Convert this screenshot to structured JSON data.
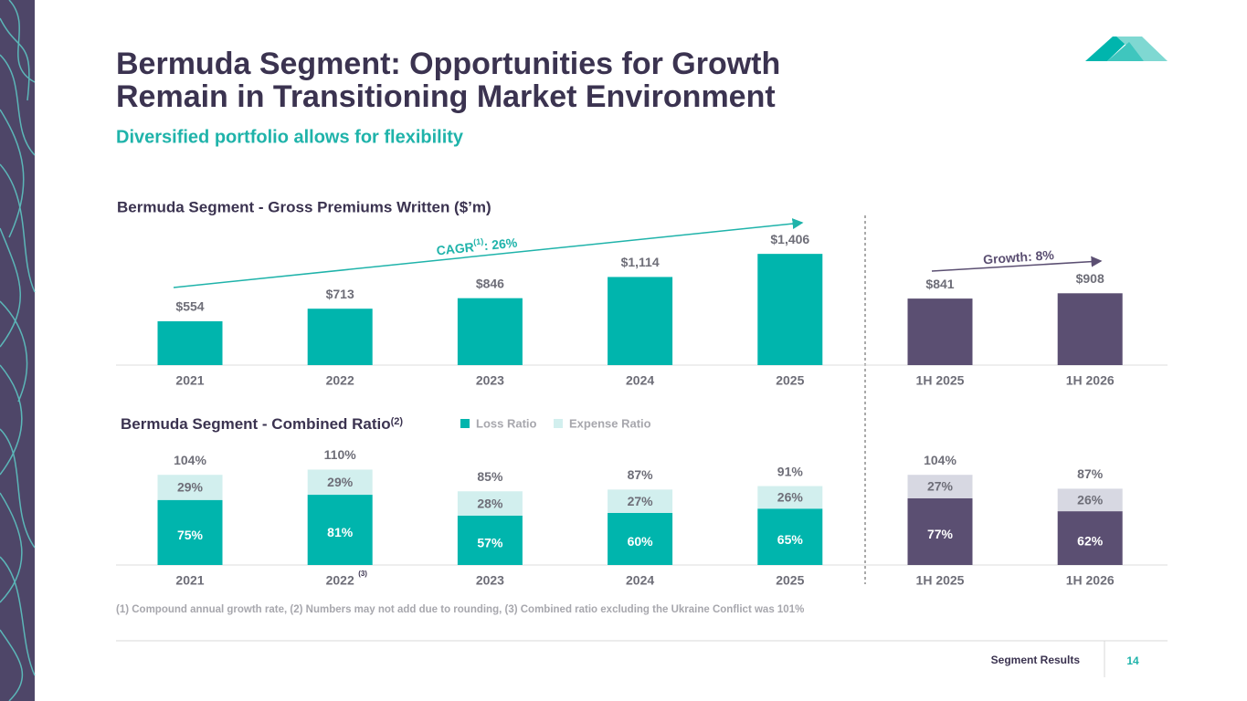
{
  "slide": {
    "title_lines": [
      "Bermuda Segment: Opportunities for Growth",
      "Remain in Transitioning Market Environment"
    ],
    "subtitle": "Diversified portfolio allows for flexibility",
    "footnote": "(1) Compound annual growth rate, (2) Numbers may not add due to rounding, (3) Combined ratio excluding the Ukraine Conflict was 101%",
    "section": "Segment Results",
    "page_number": "14"
  },
  "chart_data": [
    {
      "type": "bar",
      "title": "Bermuda Segment - Gross Premiums Written ($’m)",
      "categories": [
        "2021",
        "2022",
        "2023",
        "2024",
        "2025",
        "1H 2025",
        "1H 2026"
      ],
      "values": [
        554,
        713,
        846,
        1114,
        1406,
        841,
        908
      ],
      "value_labels": [
        "$554",
        "$713",
        "$846",
        "$1,114",
        "$1,406",
        "$841",
        "$908"
      ],
      "colors": [
        "#00b5ad",
        "#00b5ad",
        "#00b5ad",
        "#00b5ad",
        "#00b5ad",
        "#5b4f72",
        "#5b4f72"
      ],
      "ylim": [
        0,
        1500
      ],
      "cagr": {
        "text": "CAGR",
        "superscript": "(1)",
        "suffix": ": 26%"
      },
      "growth": "Growth: 8%"
    },
    {
      "type": "stacked_bar",
      "title": "Bermuda Segment - Combined Ratio",
      "title_superscript": "(2)",
      "categories": [
        "2021",
        "2022",
        "2023",
        "2024",
        "2025",
        "1H 2025",
        "1H 2026"
      ],
      "category_superscripts": [
        null,
        "(3)",
        null,
        null,
        null,
        null,
        null
      ],
      "series": [
        {
          "name": "Loss  Ratio",
          "color": "#00b5ad",
          "values": [
            75,
            81,
            57,
            60,
            65,
            77,
            62
          ],
          "value_labels": [
            "75%",
            "81%",
            "57%",
            "60%",
            "65%",
            "77%",
            "62%"
          ],
          "point_colors": [
            "#00b5ad",
            "#00b5ad",
            "#00b5ad",
            "#00b5ad",
            "#00b5ad",
            "#5b4f72",
            "#5b4f72"
          ]
        },
        {
          "name": "Expense  Ratio",
          "color": "#d2efee",
          "values": [
            29,
            29,
            28,
            27,
            26,
            27,
            26
          ],
          "value_labels": [
            "29%",
            "29%",
            "28%",
            "27%",
            "26%",
            "27%",
            "26%"
          ],
          "point_colors": [
            "#d2efee",
            "#d2efee",
            "#d2efee",
            "#d2efee",
            "#d2efee",
            "#d7d8e2",
            "#d7d8e2"
          ]
        }
      ],
      "totals": [
        104,
        110,
        85,
        87,
        91,
        104,
        87
      ],
      "total_labels": [
        "104%",
        "110%",
        "85%",
        "87%",
        "91%",
        "104%",
        "87%"
      ],
      "ylim": [
        0,
        120
      ]
    }
  ]
}
